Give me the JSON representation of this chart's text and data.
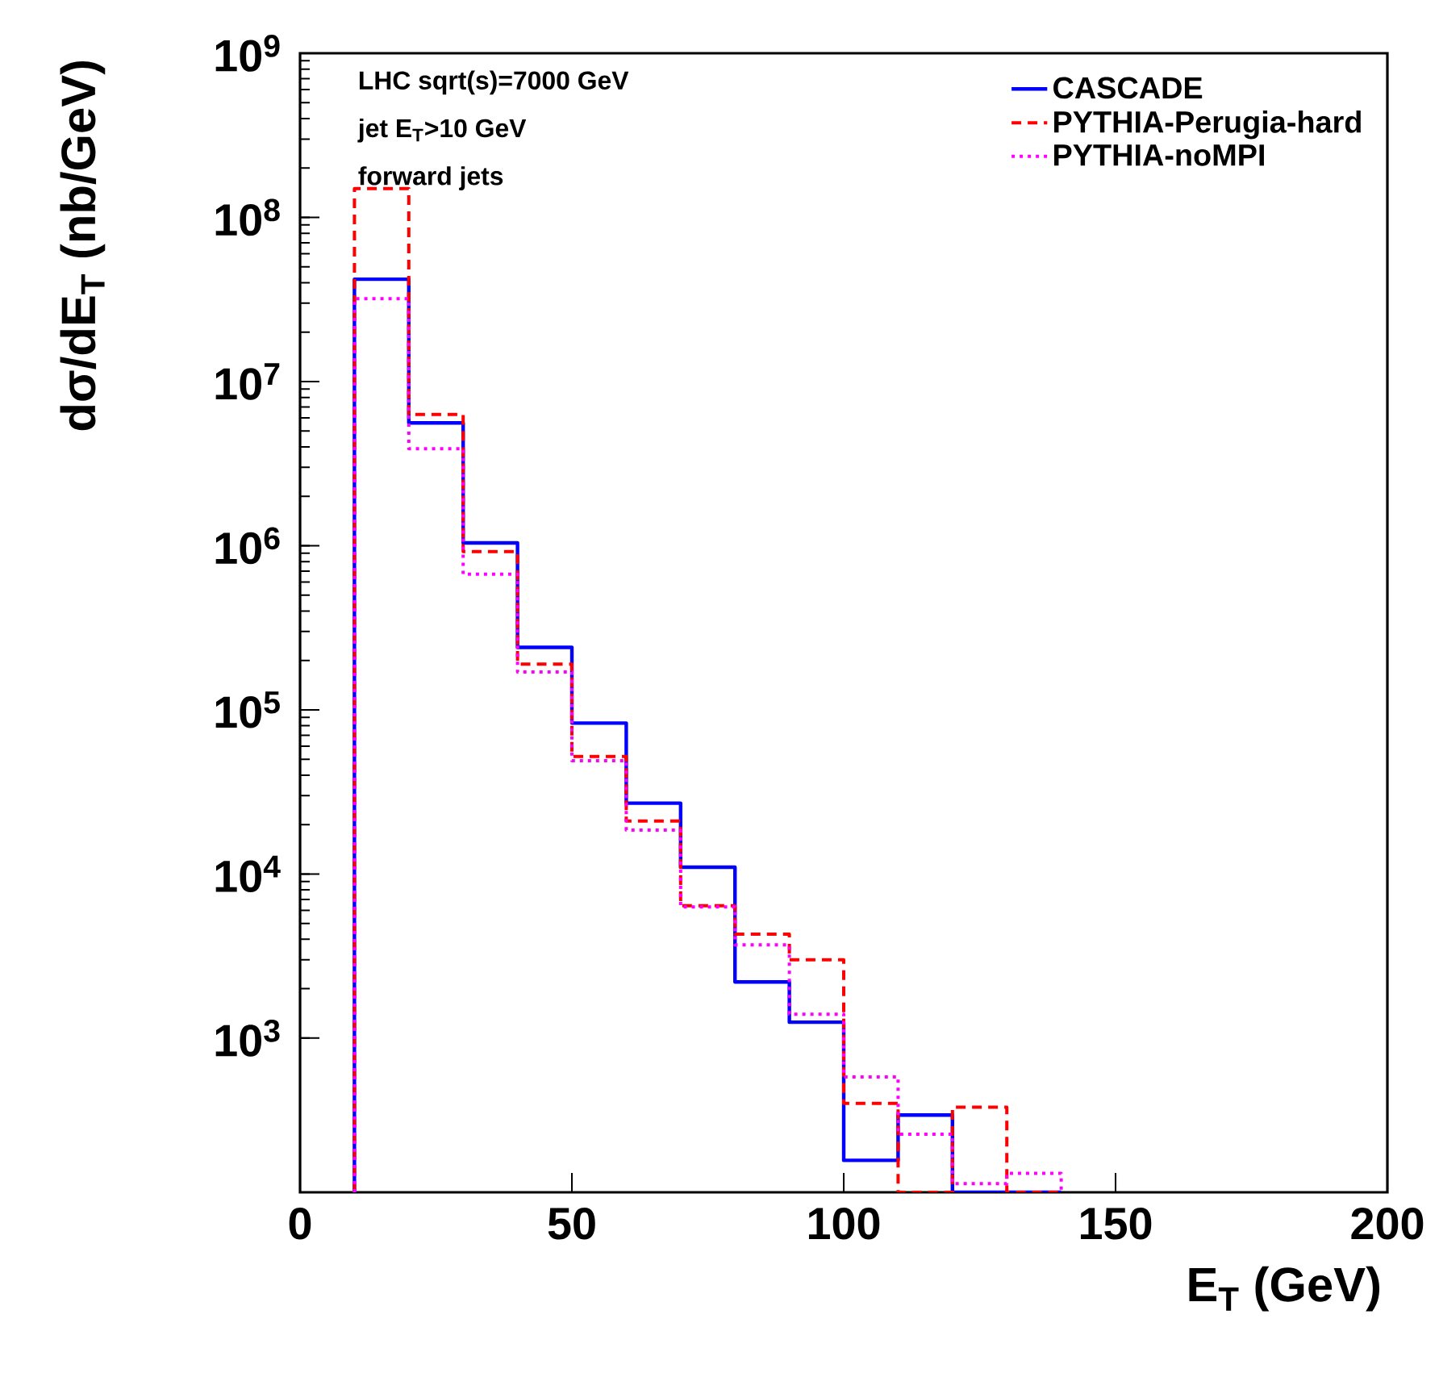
{
  "chart_data": {
    "type": "histogram",
    "xlabel": "E$_{T}$ (GeV)",
    "ylabel": "dσ/dE$_{T}$ (nb/GeV)",
    "annotations": [
      "LHC sqrt(s)=7000 GeV",
      "jet  E$_{T}$>10 GeV",
      "forward jets"
    ],
    "bins": [
      10,
      20,
      30,
      40,
      50,
      60,
      70,
      80,
      90,
      100,
      110,
      120,
      130,
      140
    ],
    "series": [
      {
        "name": "CASCADE",
        "color": "#0000ff",
        "line_style": "solid",
        "values": [
          42000000.0,
          5600000.0,
          1040000.0,
          240000.0,
          83000.0,
          27000.0,
          11000.0,
          2200.0,
          1250.0,
          180,
          340,
          null,
          null
        ]
      },
      {
        "name": "PYTHIA-Perugia-hard",
        "color": "#ff0000",
        "line_style": "dashed",
        "values": [
          150000000.0,
          6300000.0,
          920000.0,
          190000.0,
          52000.0,
          21000.0,
          6400.0,
          4300.0,
          3000.0,
          400,
          null,
          380,
          null
        ]
      },
      {
        "name": "PYTHIA-noMPI",
        "color": "#ff00ff",
        "line_style": "dotted",
        "values": [
          32000000.0,
          3900000.0,
          670000.0,
          170000.0,
          49000.0,
          18500.0,
          6300.0,
          3700.0,
          1400.0,
          580,
          260,
          130,
          150
        ]
      }
    ],
    "xlim": [
      0,
      200
    ],
    "ylim": [
      115,
      1000000000.0
    ],
    "log": "y",
    "xticks": [
      0,
      50,
      100,
      150,
      200
    ],
    "yticks": [
      {
        "value": 1000,
        "label": "10$^{3}$"
      },
      {
        "value": 10000,
        "label": "10$^{4}$"
      },
      {
        "value": 100000,
        "label": "10$^{5}$"
      },
      {
        "value": 1000000,
        "label": "10$^{6}$"
      },
      {
        "value": 10000000,
        "label": "10$^{7}$"
      },
      {
        "value": 100000000,
        "label": "10$^{8}$"
      },
      {
        "value": 1000000000,
        "label": "10$^{9}$"
      }
    ],
    "grid": false,
    "legend": "top right"
  }
}
